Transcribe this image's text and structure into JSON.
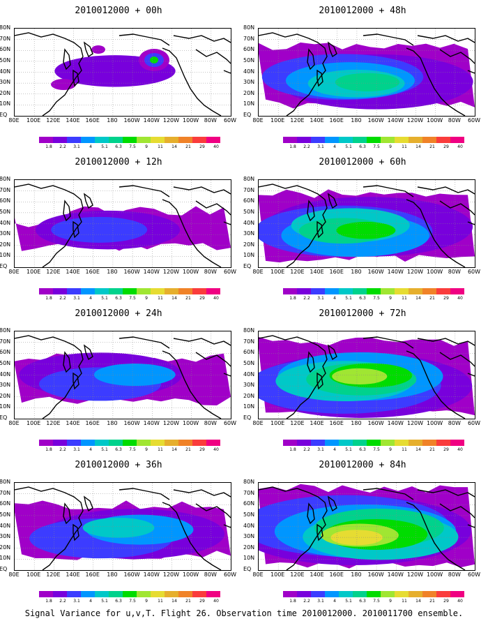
{
  "panels": [
    {
      "title": "2010012000 + 00h",
      "intensity": 0
    },
    {
      "title": "2010012000 + 48h",
      "intensity": 4
    },
    {
      "title": "2010012000 + 12h",
      "intensity": 1
    },
    {
      "title": "2010012000 + 60h",
      "intensity": 5
    },
    {
      "title": "2010012000 + 24h",
      "intensity": 2
    },
    {
      "title": "2010012000 + 72h",
      "intensity": 6
    },
    {
      "title": "2010012000 + 36h",
      "intensity": 3
    },
    {
      "title": "2010012000 + 84h",
      "intensity": 7
    }
  ],
  "lat_labels": [
    "80N",
    "70N",
    "60N",
    "50N",
    "40N",
    "30N",
    "20N",
    "10N",
    "EQ"
  ],
  "lon_labels": [
    "80E",
    "100E",
    "120E",
    "140E",
    "160E",
    "180",
    "160W",
    "140W",
    "120W",
    "100W",
    "80W",
    "60W"
  ],
  "colorbar": {
    "labels": [
      "1.8",
      "2.2",
      "3.1",
      "4",
      "5.1",
      "6.3",
      "7.5",
      "9",
      "11",
      "14",
      "21",
      "29",
      "40"
    ],
    "colors": [
      "#a000c8",
      "#7800dc",
      "#3c3cff",
      "#0096ff",
      "#00c8c8",
      "#00d28c",
      "#00dc00",
      "#a0e632",
      "#e6dc32",
      "#e6af2d",
      "#f08228",
      "#fa3c3c",
      "#f00082"
    ]
  },
  "caption": "Signal Variance for u,v,T. Flight 26. Observation time 2010012000. 2010011700 ensemble."
}
